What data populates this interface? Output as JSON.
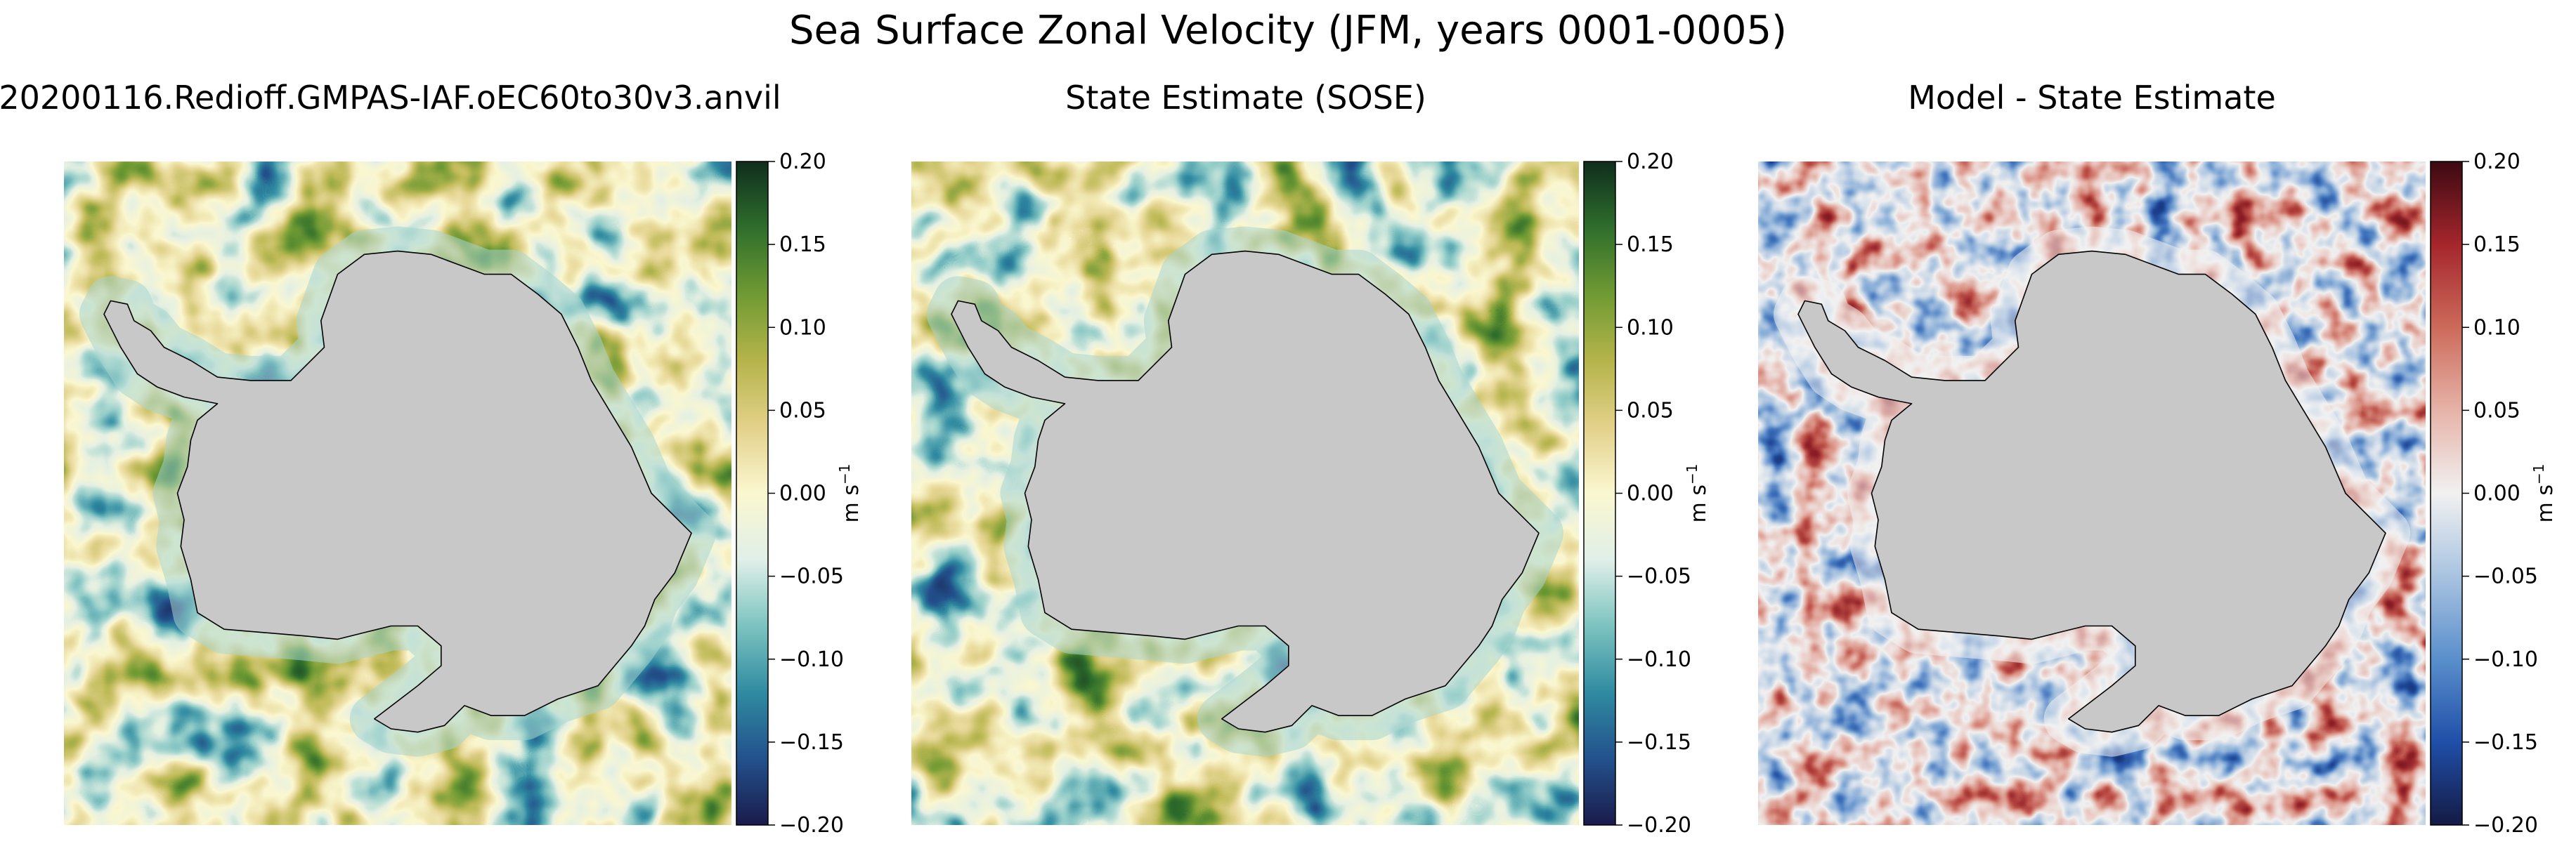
{
  "figure": {
    "suptitle": "Sea Surface Zonal Velocity (JFM, years 0001-0005)"
  },
  "chart_data": [
    {
      "type": "heatmap",
      "title": "20200116.Redioff.GMPAS-IAF.oEC60to30v3.anvil",
      "colormap": "yellow-green-blue (deep)",
      "cmap_stops": [
        "#1a1b4b",
        "#23518c",
        "#2f8ba1",
        "#7cc3c0",
        "#e0efe8",
        "#fbf7d0",
        "#e3d18a",
        "#b5b44a",
        "#6f9a33",
        "#2f6e2c",
        "#0f2d1d"
      ],
      "land_color": "#c8c8c8",
      "colorbar": {
        "label": "m s",
        "label_sup": "−1",
        "range": [
          -0.2,
          0.2
        ],
        "ticks": [
          "0.20",
          "0.15",
          "0.10",
          "0.05",
          "0.00",
          "−0.05",
          "−0.10",
          "−0.15",
          "−0.20"
        ]
      }
    },
    {
      "type": "heatmap",
      "title": "State Estimate (SOSE)",
      "colormap": "yellow-green-blue (deep)",
      "cmap_stops": [
        "#1a1b4b",
        "#23518c",
        "#2f8ba1",
        "#7cc3c0",
        "#e0efe8",
        "#fbf7d0",
        "#e3d18a",
        "#b5b44a",
        "#6f9a33",
        "#2f6e2c",
        "#0f2d1d"
      ],
      "land_color": "#c8c8c8",
      "colorbar": {
        "label": "m s",
        "label_sup": "−1",
        "range": [
          -0.2,
          0.2
        ],
        "ticks": [
          "0.20",
          "0.15",
          "0.10",
          "0.05",
          "0.00",
          "−0.05",
          "−0.10",
          "−0.15",
          "−0.20"
        ]
      }
    },
    {
      "type": "heatmap",
      "title": "Model - State Estimate",
      "colormap": "blue-white-red (balance)",
      "cmap_stops": [
        "#141a44",
        "#1f4fa8",
        "#5a8fcc",
        "#a9c3e0",
        "#f1f1f1",
        "#e6b3a8",
        "#cc6a5a",
        "#a5262c",
        "#3c0912"
      ],
      "land_color": "#c8c8c8",
      "colorbar": {
        "label": "m s",
        "label_sup": "−1",
        "range": [
          -0.2,
          0.2
        ],
        "ticks": [
          "0.20",
          "0.15",
          "0.10",
          "0.05",
          "0.00",
          "−0.05",
          "−0.10",
          "−0.15",
          "−0.20"
        ]
      }
    }
  ]
}
